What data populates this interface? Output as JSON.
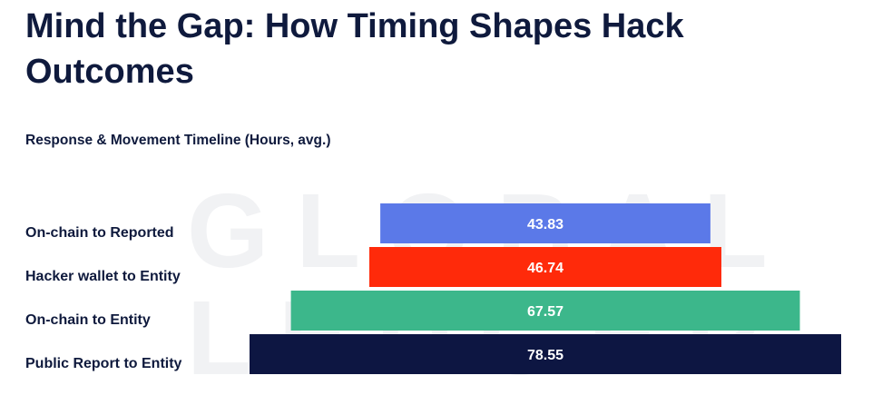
{
  "header": {
    "title": "Mind the Gap: How Timing Shapes Hack Outcomes"
  },
  "watermark": {
    "line1": "GLOBAL",
    "line2": "LEDGER"
  },
  "chart_data": {
    "type": "bar",
    "orientation": "horizontal-centered",
    "title": "Response & Movement Timeline (Hours, avg.)",
    "categories": [
      "On-chain to Reported",
      "Hacker wallet to Entity",
      "On-chain to Entity",
      "Public Report to Entity"
    ],
    "values": [
      43.83,
      46.74,
      67.57,
      78.55
    ],
    "value_labels": [
      "43.83",
      "46.74",
      "67.57",
      "78.55"
    ],
    "colors": [
      "#5b79e8",
      "#ff2a0a",
      "#3cb78b",
      "#0d1642"
    ],
    "xlim": [
      0,
      78.55
    ]
  }
}
